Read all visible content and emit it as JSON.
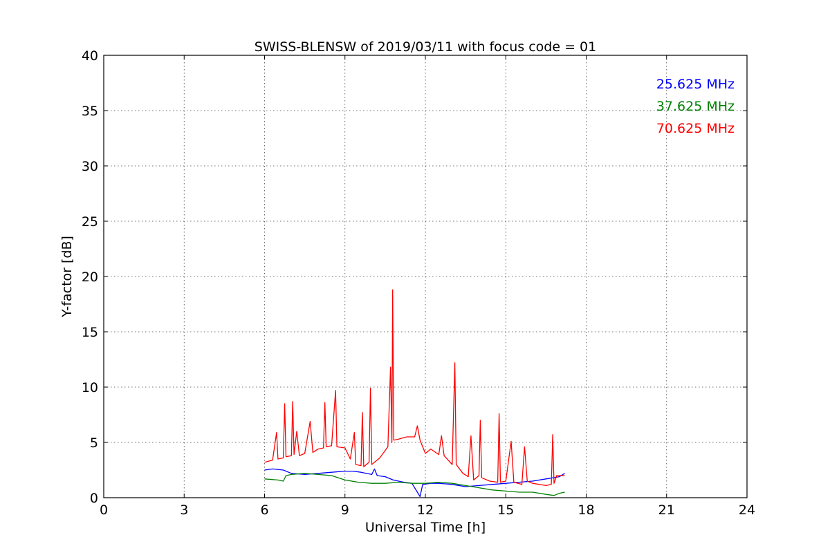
{
  "chart_data": {
    "type": "line",
    "title": "SWISS-BLENSW of 2019/03/11 with focus code = 01",
    "xlabel": "Universal Time [h]",
    "ylabel": "Y-factor [dB]",
    "xlim": [
      0,
      24
    ],
    "ylim": [
      0,
      40
    ],
    "xticks": [
      0,
      3,
      6,
      9,
      12,
      15,
      18,
      21,
      24
    ],
    "xtick_labels": [
      "0",
      "3",
      "6",
      "9",
      "12",
      "15",
      "18",
      "21",
      "24"
    ],
    "yticks": [
      0,
      5,
      10,
      15,
      20,
      25,
      30,
      35,
      40
    ],
    "ytick_labels": [
      "0",
      "5",
      "10",
      "15",
      "20",
      "25",
      "30",
      "35",
      "40"
    ],
    "grid": true,
    "legend_position": "top-right",
    "series": [
      {
        "name": "25.625 MHz",
        "color": "#0000ff",
        "points": [
          [
            6.0,
            2.5
          ],
          [
            6.3,
            2.6
          ],
          [
            6.7,
            2.5
          ],
          [
            7.0,
            2.2
          ],
          [
            7.5,
            2.1
          ],
          [
            8.0,
            2.2
          ],
          [
            8.5,
            2.3
          ],
          [
            9.0,
            2.4
          ],
          [
            9.3,
            2.4
          ],
          [
            9.6,
            2.3
          ],
          [
            10.0,
            2.1
          ],
          [
            10.1,
            2.6
          ],
          [
            10.2,
            2.0
          ],
          [
            10.5,
            1.9
          ],
          [
            10.8,
            1.6
          ],
          [
            11.2,
            1.4
          ],
          [
            11.5,
            1.3
          ],
          [
            11.7,
            0.5
          ],
          [
            11.8,
            0.1
          ],
          [
            11.9,
            1.2
          ],
          [
            12.2,
            1.3
          ],
          [
            12.5,
            1.3
          ],
          [
            13.0,
            1.2
          ],
          [
            13.5,
            1.0
          ],
          [
            14.0,
            1.1
          ],
          [
            14.5,
            1.2
          ],
          [
            15.0,
            1.3
          ],
          [
            15.5,
            1.4
          ],
          [
            16.0,
            1.5
          ],
          [
            16.5,
            1.7
          ],
          [
            17.0,
            1.9
          ],
          [
            17.2,
            2.2
          ]
        ]
      },
      {
        "name": "37.625 MHz",
        "color": "#008000",
        "points": [
          [
            6.0,
            1.7
          ],
          [
            6.5,
            1.6
          ],
          [
            6.7,
            1.5
          ],
          [
            6.8,
            2.0
          ],
          [
            7.0,
            2.1
          ],
          [
            7.5,
            2.2
          ],
          [
            8.0,
            2.1
          ],
          [
            8.5,
            2.0
          ],
          [
            9.0,
            1.6
          ],
          [
            9.5,
            1.4
          ],
          [
            10.0,
            1.3
          ],
          [
            10.5,
            1.3
          ],
          [
            11.0,
            1.4
          ],
          [
            11.5,
            1.3
          ],
          [
            12.0,
            1.3
          ],
          [
            12.5,
            1.4
          ],
          [
            13.0,
            1.3
          ],
          [
            13.5,
            1.1
          ],
          [
            14.0,
            0.9
          ],
          [
            14.5,
            0.7
          ],
          [
            15.0,
            0.6
          ],
          [
            15.5,
            0.5
          ],
          [
            16.0,
            0.5
          ],
          [
            16.5,
            0.3
          ],
          [
            16.8,
            0.2
          ],
          [
            17.0,
            0.4
          ],
          [
            17.2,
            0.5
          ]
        ]
      },
      {
        "name": "70.625 MHz",
        "color": "#ff0000",
        "points": [
          [
            6.0,
            3.2
          ],
          [
            6.3,
            3.4
          ],
          [
            6.45,
            5.9
          ],
          [
            6.5,
            3.5
          ],
          [
            6.7,
            3.6
          ],
          [
            6.75,
            8.5
          ],
          [
            6.8,
            3.7
          ],
          [
            7.0,
            3.8
          ],
          [
            7.05,
            8.7
          ],
          [
            7.1,
            3.9
          ],
          [
            7.2,
            6.0
          ],
          [
            7.3,
            3.8
          ],
          [
            7.5,
            4.0
          ],
          [
            7.7,
            6.9
          ],
          [
            7.8,
            4.1
          ],
          [
            8.0,
            4.4
          ],
          [
            8.2,
            4.5
          ],
          [
            8.25,
            8.6
          ],
          [
            8.3,
            4.6
          ],
          [
            8.5,
            4.7
          ],
          [
            8.65,
            9.7
          ],
          [
            8.7,
            4.6
          ],
          [
            9.0,
            4.5
          ],
          [
            9.2,
            3.5
          ],
          [
            9.35,
            5.9
          ],
          [
            9.4,
            3.0
          ],
          [
            9.6,
            2.9
          ],
          [
            9.65,
            7.7
          ],
          [
            9.7,
            2.8
          ],
          [
            9.9,
            3.2
          ],
          [
            9.95,
            9.9
          ],
          [
            10.0,
            3.0
          ],
          [
            10.3,
            3.6
          ],
          [
            10.6,
            4.6
          ],
          [
            10.7,
            11.8
          ],
          [
            10.75,
            5.0
          ],
          [
            10.78,
            18.8
          ],
          [
            10.82,
            5.2
          ],
          [
            11.0,
            5.3
          ],
          [
            11.3,
            5.5
          ],
          [
            11.6,
            5.5
          ],
          [
            11.7,
            6.5
          ],
          [
            11.8,
            5.2
          ],
          [
            12.0,
            4.0
          ],
          [
            12.2,
            4.4
          ],
          [
            12.5,
            3.9
          ],
          [
            12.6,
            5.6
          ],
          [
            12.7,
            3.8
          ],
          [
            13.0,
            3.0
          ],
          [
            13.1,
            12.2
          ],
          [
            13.15,
            3.0
          ],
          [
            13.4,
            2.2
          ],
          [
            13.6,
            1.9
          ],
          [
            13.7,
            5.6
          ],
          [
            13.8,
            1.6
          ],
          [
            14.0,
            2.0
          ],
          [
            14.05,
            7.0
          ],
          [
            14.1,
            1.8
          ],
          [
            14.4,
            1.5
          ],
          [
            14.7,
            1.4
          ],
          [
            14.75,
            7.6
          ],
          [
            14.8,
            1.4
          ],
          [
            15.0,
            1.5
          ],
          [
            15.2,
            5.1
          ],
          [
            15.3,
            1.4
          ],
          [
            15.6,
            1.2
          ],
          [
            15.7,
            4.6
          ],
          [
            15.8,
            1.5
          ],
          [
            16.0,
            1.3
          ],
          [
            16.5,
            1.1
          ],
          [
            16.7,
            1.2
          ],
          [
            16.75,
            5.7
          ],
          [
            16.8,
            1.3
          ],
          [
            16.9,
            2.0
          ],
          [
            17.2,
            2.0
          ]
        ]
      }
    ]
  }
}
